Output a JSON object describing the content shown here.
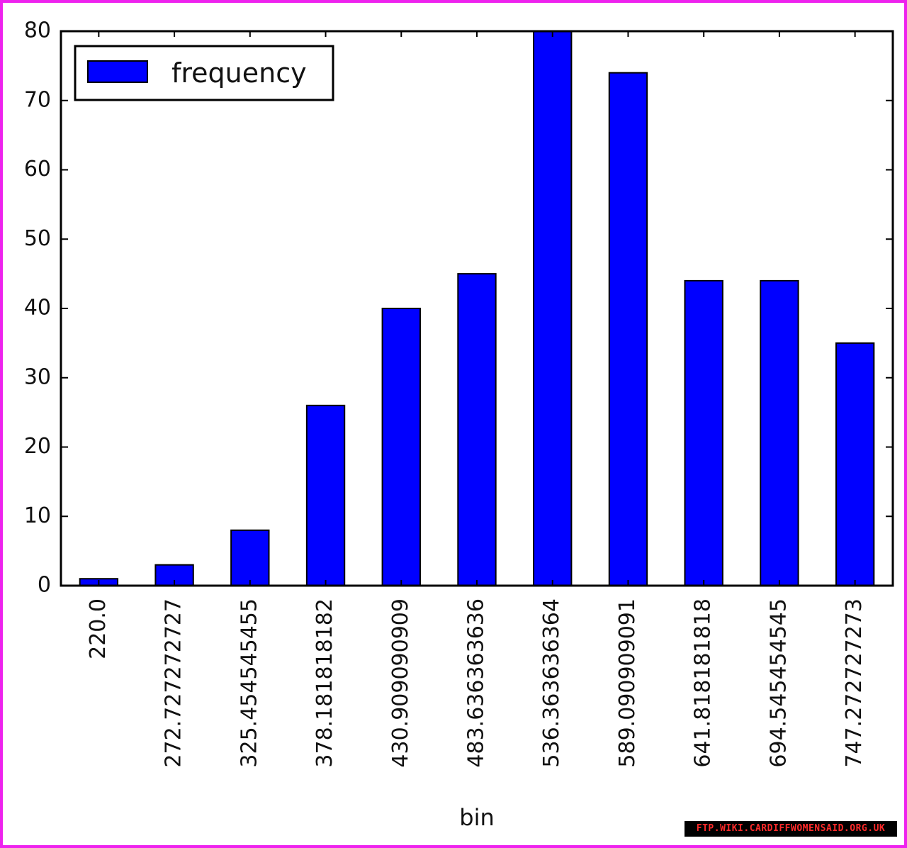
{
  "colors": {
    "bar": "#0000ff",
    "border": "#ee22ee"
  },
  "watermark": "FTP.WIKI.CARDIFFWOMENSAID.ORG.UK",
  "chart_data": {
    "type": "bar",
    "categories": [
      "220.0",
      "272.727272727",
      "325.454545455",
      "378.181818182",
      "430.909090909",
      "483.636363636",
      "536.363636364",
      "589.090909091",
      "641.818181818",
      "694.545454545",
      "747.272727273"
    ],
    "series": [
      {
        "name": "frequency",
        "values": [
          1,
          3,
          8,
          26,
          40,
          45,
          80,
          74,
          44,
          44,
          35
        ]
      }
    ],
    "title": "",
    "xlabel": "bin",
    "ylabel": "",
    "ylim": [
      0,
      80
    ],
    "yticks": [
      0,
      10,
      20,
      30,
      40,
      50,
      60,
      70,
      80
    ],
    "legend": {
      "placement": "top-left",
      "labels": [
        "frequency"
      ]
    },
    "grid": false
  }
}
